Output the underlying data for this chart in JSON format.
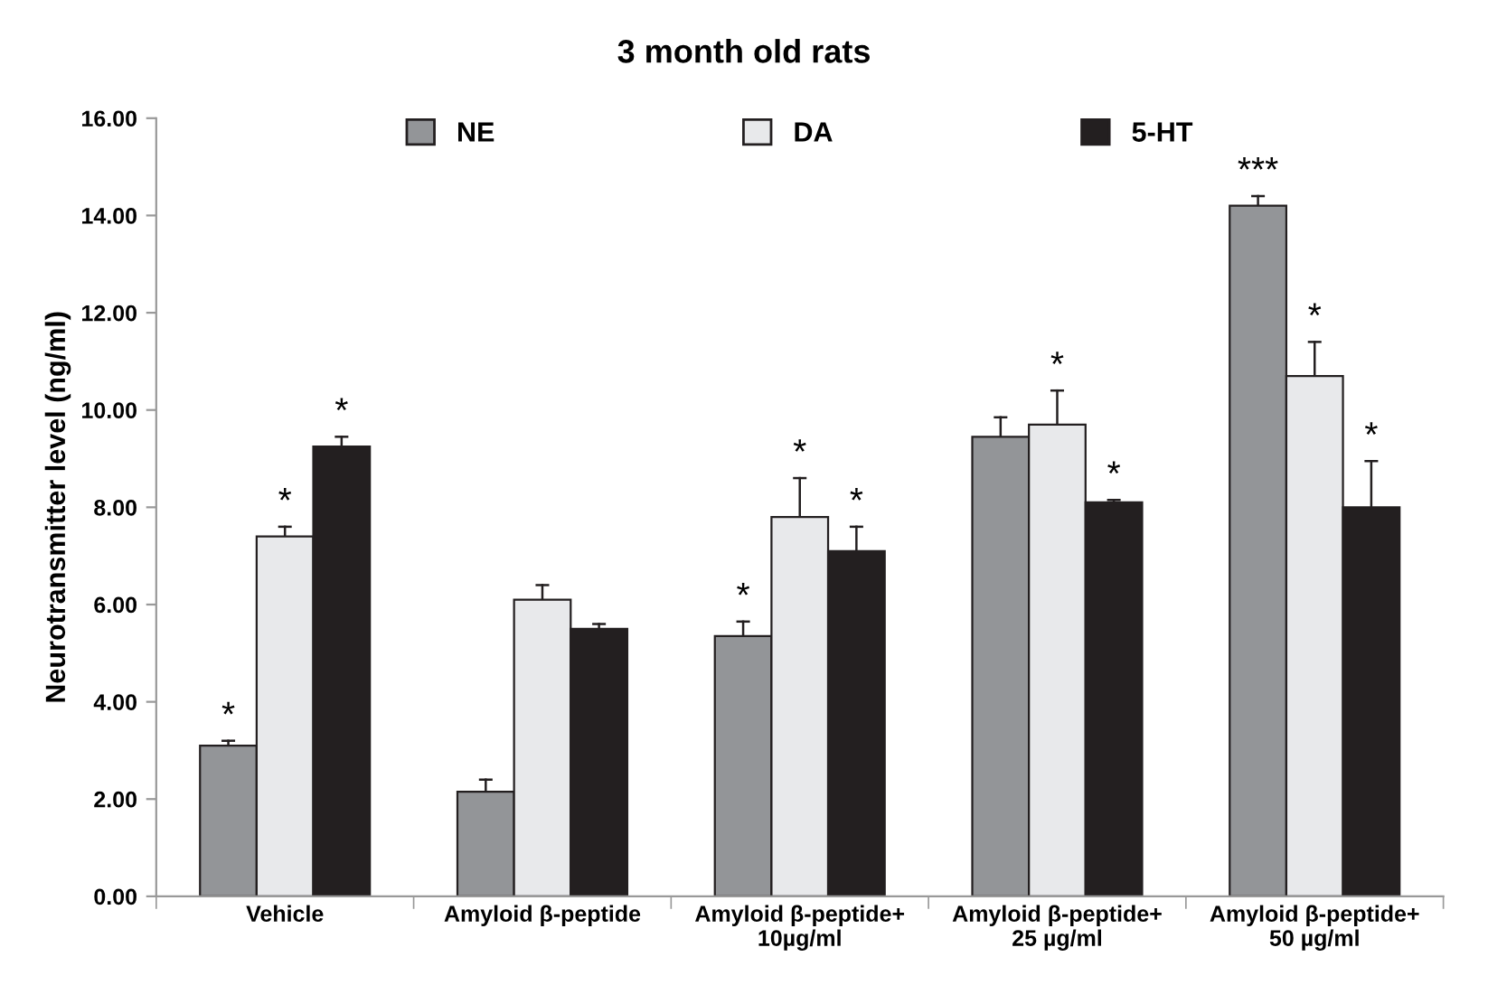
{
  "chart_data": {
    "type": "bar",
    "title": "3 month old rats",
    "ylabel": "Neurotransmitter level (ng/ml)",
    "categories": [
      "Vehicle",
      "Amyloid β-peptide",
      "Amyloid β-peptide+\n10µg/ml",
      "Amyloid β-peptide+\n25 µg/ml",
      "Amyloid β-peptide+\n50 µg/ml"
    ],
    "series": [
      {
        "name": "NE",
        "color": "#939598",
        "values": [
          3.1,
          2.15,
          5.35,
          9.45,
          14.2
        ],
        "errors": [
          [
            3.1,
            3.2
          ],
          [
            2.15,
            2.4
          ],
          [
            5.35,
            5.65
          ],
          [
            9.45,
            9.85
          ],
          [
            14.2,
            14.4
          ]
        ],
        "value_labels": [
          "*",
          null,
          "*",
          null,
          "***"
        ]
      },
      {
        "name": "DA",
        "color": "#e8e9eb",
        "values": [
          7.4,
          6.1,
          7.8,
          9.7,
          10.7
        ],
        "errors": [
          [
            7.4,
            7.6
          ],
          [
            6.1,
            6.4
          ],
          [
            7.8,
            8.6
          ],
          [
            9.7,
            10.4
          ],
          [
            10.7,
            11.4
          ]
        ],
        "value_labels": [
          "*",
          null,
          "*",
          "*",
          "*"
        ]
      },
      {
        "name": "5-HT",
        "color": "#231f20",
        "values": [
          9.25,
          5.5,
          7.1,
          8.1,
          8.0
        ],
        "errors": [
          [
            9.25,
            9.45
          ],
          [
            5.5,
            5.6
          ],
          [
            7.1,
            7.6
          ],
          [
            8.1,
            8.15
          ],
          [
            8.0,
            8.95
          ]
        ],
        "value_labels": [
          "*",
          null,
          "*",
          "*",
          "*"
        ]
      }
    ],
    "ylim": [
      0,
      16
    ],
    "yticks": [
      {
        "value": 0,
        "label": "0.00"
      },
      {
        "value": 2,
        "label": "2.00"
      },
      {
        "value": 4,
        "label": "4.00"
      },
      {
        "value": 6,
        "label": "6.00"
      },
      {
        "value": 8,
        "label": "8.00"
      },
      {
        "value": 10,
        "label": "10.00"
      },
      {
        "value": 12,
        "label": "12.00"
      },
      {
        "value": 14,
        "label": "14.00"
      },
      {
        "value": 16,
        "label": "16.00"
      }
    ],
    "grid": false,
    "legend": "top"
  }
}
